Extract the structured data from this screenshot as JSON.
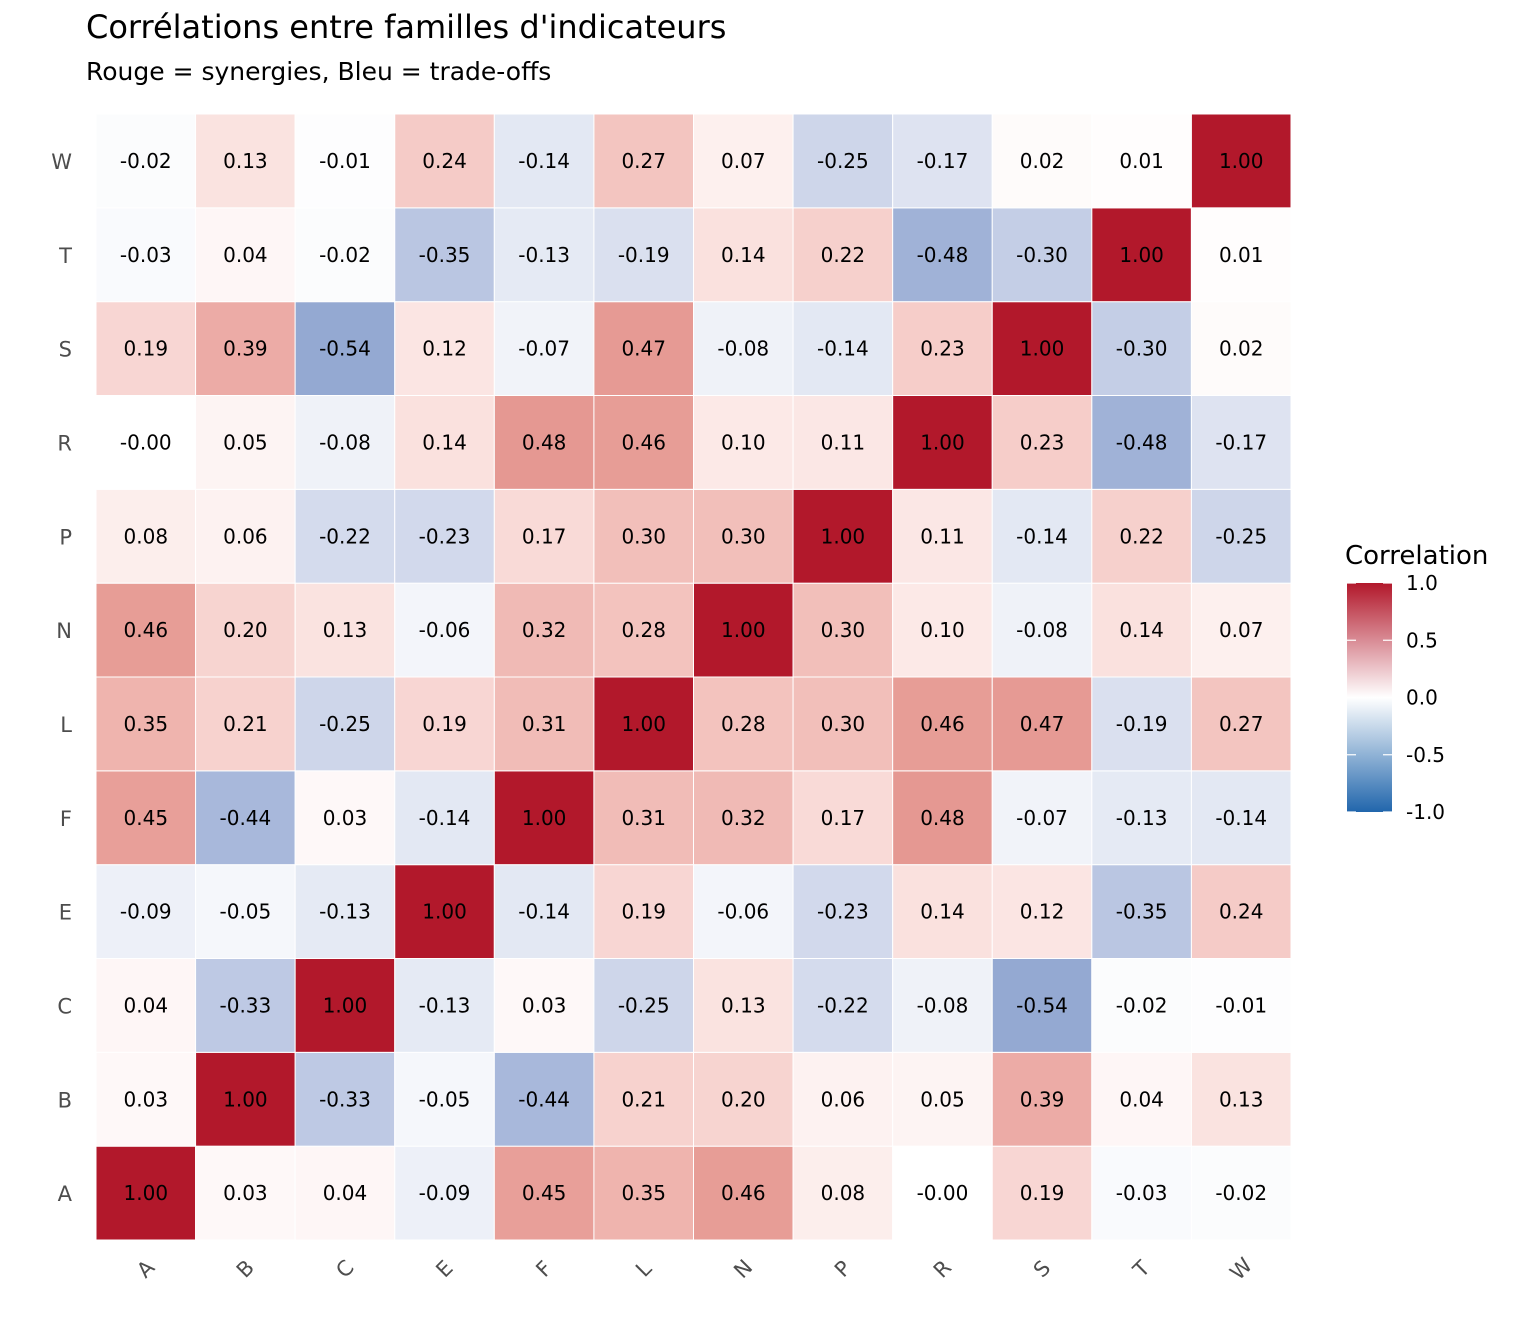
{
  "chart_data": {
    "type": "heatmap",
    "title": "Corrélations entre familles d'indicateurs",
    "subtitle": "Rouge = synergies, Bleu = trade-offs",
    "xlabel": "",
    "ylabel": "",
    "x_categories": [
      "A",
      "B",
      "C",
      "E",
      "F",
      "L",
      "N",
      "P",
      "R",
      "S",
      "T",
      "W"
    ],
    "y_categories": [
      "A",
      "B",
      "C",
      "E",
      "F",
      "L",
      "N",
      "P",
      "R",
      "S",
      "T",
      "W"
    ],
    "y_order": "bottom-to-top",
    "matrix": [
      [
        1.0,
        0.03,
        0.04,
        -0.09,
        0.45,
        0.35,
        0.46,
        0.08,
        -0.0,
        0.19,
        -0.03,
        -0.02
      ],
      [
        0.03,
        1.0,
        -0.33,
        -0.05,
        -0.44,
        0.21,
        0.2,
        0.06,
        0.05,
        0.39,
        0.04,
        0.13
      ],
      [
        0.04,
        -0.33,
        1.0,
        -0.13,
        0.03,
        -0.25,
        0.13,
        -0.22,
        -0.08,
        -0.54,
        -0.02,
        -0.01
      ],
      [
        -0.09,
        -0.05,
        -0.13,
        1.0,
        -0.14,
        0.19,
        -0.06,
        -0.23,
        0.14,
        0.12,
        -0.35,
        0.24
      ],
      [
        0.45,
        -0.44,
        0.03,
        -0.14,
        1.0,
        0.31,
        0.32,
        0.17,
        0.48,
        -0.07,
        -0.13,
        -0.14
      ],
      [
        0.35,
        0.21,
        -0.25,
        0.19,
        0.31,
        1.0,
        0.28,
        0.3,
        0.46,
        0.47,
        -0.19,
        0.27
      ],
      [
        0.46,
        0.2,
        0.13,
        -0.06,
        0.32,
        0.28,
        1.0,
        0.3,
        0.1,
        -0.08,
        0.14,
        0.07
      ],
      [
        0.08,
        0.06,
        -0.22,
        -0.23,
        0.17,
        0.3,
        0.3,
        1.0,
        0.11,
        -0.14,
        0.22,
        -0.25
      ],
      [
        -0.0,
        0.05,
        -0.08,
        0.14,
        0.48,
        0.46,
        0.1,
        0.11,
        1.0,
        0.23,
        -0.48,
        -0.17
      ],
      [
        0.19,
        0.39,
        -0.54,
        0.12,
        -0.07,
        0.47,
        -0.08,
        -0.14,
        0.23,
        1.0,
        -0.3,
        0.02
      ],
      [
        -0.03,
        0.04,
        -0.02,
        -0.35,
        -0.13,
        -0.19,
        0.14,
        0.22,
        -0.48,
        -0.3,
        1.0,
        0.01
      ],
      [
        -0.02,
        0.13,
        -0.01,
        0.24,
        -0.14,
        0.27,
        0.07,
        -0.25,
        -0.17,
        0.02,
        0.01,
        1.0
      ]
    ],
    "cell_labels": [
      [
        "1.00",
        "0.03",
        "0.04",
        "-0.09",
        "0.45",
        "0.35",
        "0.46",
        "0.08",
        "-0.00",
        "0.19",
        "-0.03",
        "-0.02"
      ],
      [
        "0.03",
        "1.00",
        "-0.33",
        "-0.05",
        "-0.44",
        "0.21",
        "0.20",
        "0.06",
        "0.05",
        "0.39",
        "0.04",
        "0.13"
      ],
      [
        "0.04",
        "-0.33",
        "1.00",
        "-0.13",
        "0.03",
        "-0.25",
        "0.13",
        "-0.22",
        "-0.08",
        "-0.54",
        "-0.02",
        "-0.01"
      ],
      [
        "-0.09",
        "-0.05",
        "-0.13",
        "1.00",
        "-0.14",
        "0.19",
        "-0.06",
        "-0.23",
        "0.14",
        "0.12",
        "-0.35",
        "0.24"
      ],
      [
        "0.45",
        "-0.44",
        "0.03",
        "-0.14",
        "1.00",
        "0.31",
        "0.32",
        "0.17",
        "0.48",
        "-0.07",
        "-0.13",
        "-0.14"
      ],
      [
        "0.35",
        "0.21",
        "-0.25",
        "0.19",
        "0.31",
        "1.00",
        "0.28",
        "0.30",
        "0.46",
        "0.47",
        "-0.19",
        "0.27"
      ],
      [
        "0.46",
        "0.20",
        "0.13",
        "-0.06",
        "0.32",
        "0.28",
        "1.00",
        "0.30",
        "0.10",
        "-0.08",
        "0.14",
        "0.07"
      ],
      [
        "0.08",
        "0.06",
        "-0.22",
        "-0.23",
        "0.17",
        "0.30",
        "0.30",
        "1.00",
        "0.11",
        "-0.14",
        "0.22",
        "-0.25"
      ],
      [
        "-0.00",
        "0.05",
        "-0.08",
        "0.14",
        "0.48",
        "0.46",
        "0.10",
        "0.11",
        "1.00",
        "0.23",
        "-0.48",
        "-0.17"
      ],
      [
        "0.19",
        "0.39",
        "-0.54",
        "0.12",
        "-0.07",
        "0.47",
        "-0.08",
        "-0.14",
        "0.23",
        "1.00",
        "-0.30",
        "0.02"
      ],
      [
        "-0.03",
        "0.04",
        "-0.02",
        "-0.35",
        "-0.13",
        "-0.19",
        "0.14",
        "0.22",
        "-0.48",
        "-0.30",
        "1.00",
        "0.01"
      ],
      [
        "-0.02",
        "0.13",
        "-0.01",
        "0.24",
        "-0.14",
        "0.27",
        "0.07",
        "-0.25",
        "-0.17",
        "0.02",
        "0.01",
        "1.00"
      ]
    ],
    "color_scale": {
      "low": "#2166AC",
      "mid": "#FFFFFF",
      "high": "#B2182B",
      "midpoint": 0,
      "limits": [
        -1,
        1
      ]
    },
    "legend": {
      "title": "Correlation",
      "position": "right",
      "breaks": [
        1.0,
        0.5,
        0.0,
        -0.5,
        -1.0
      ],
      "break_labels": [
        "1.0",
        "0.5",
        "0.0",
        "-0.5",
        "-1.0"
      ]
    },
    "x_tick_rotation": "45-degree",
    "grid": false
  }
}
